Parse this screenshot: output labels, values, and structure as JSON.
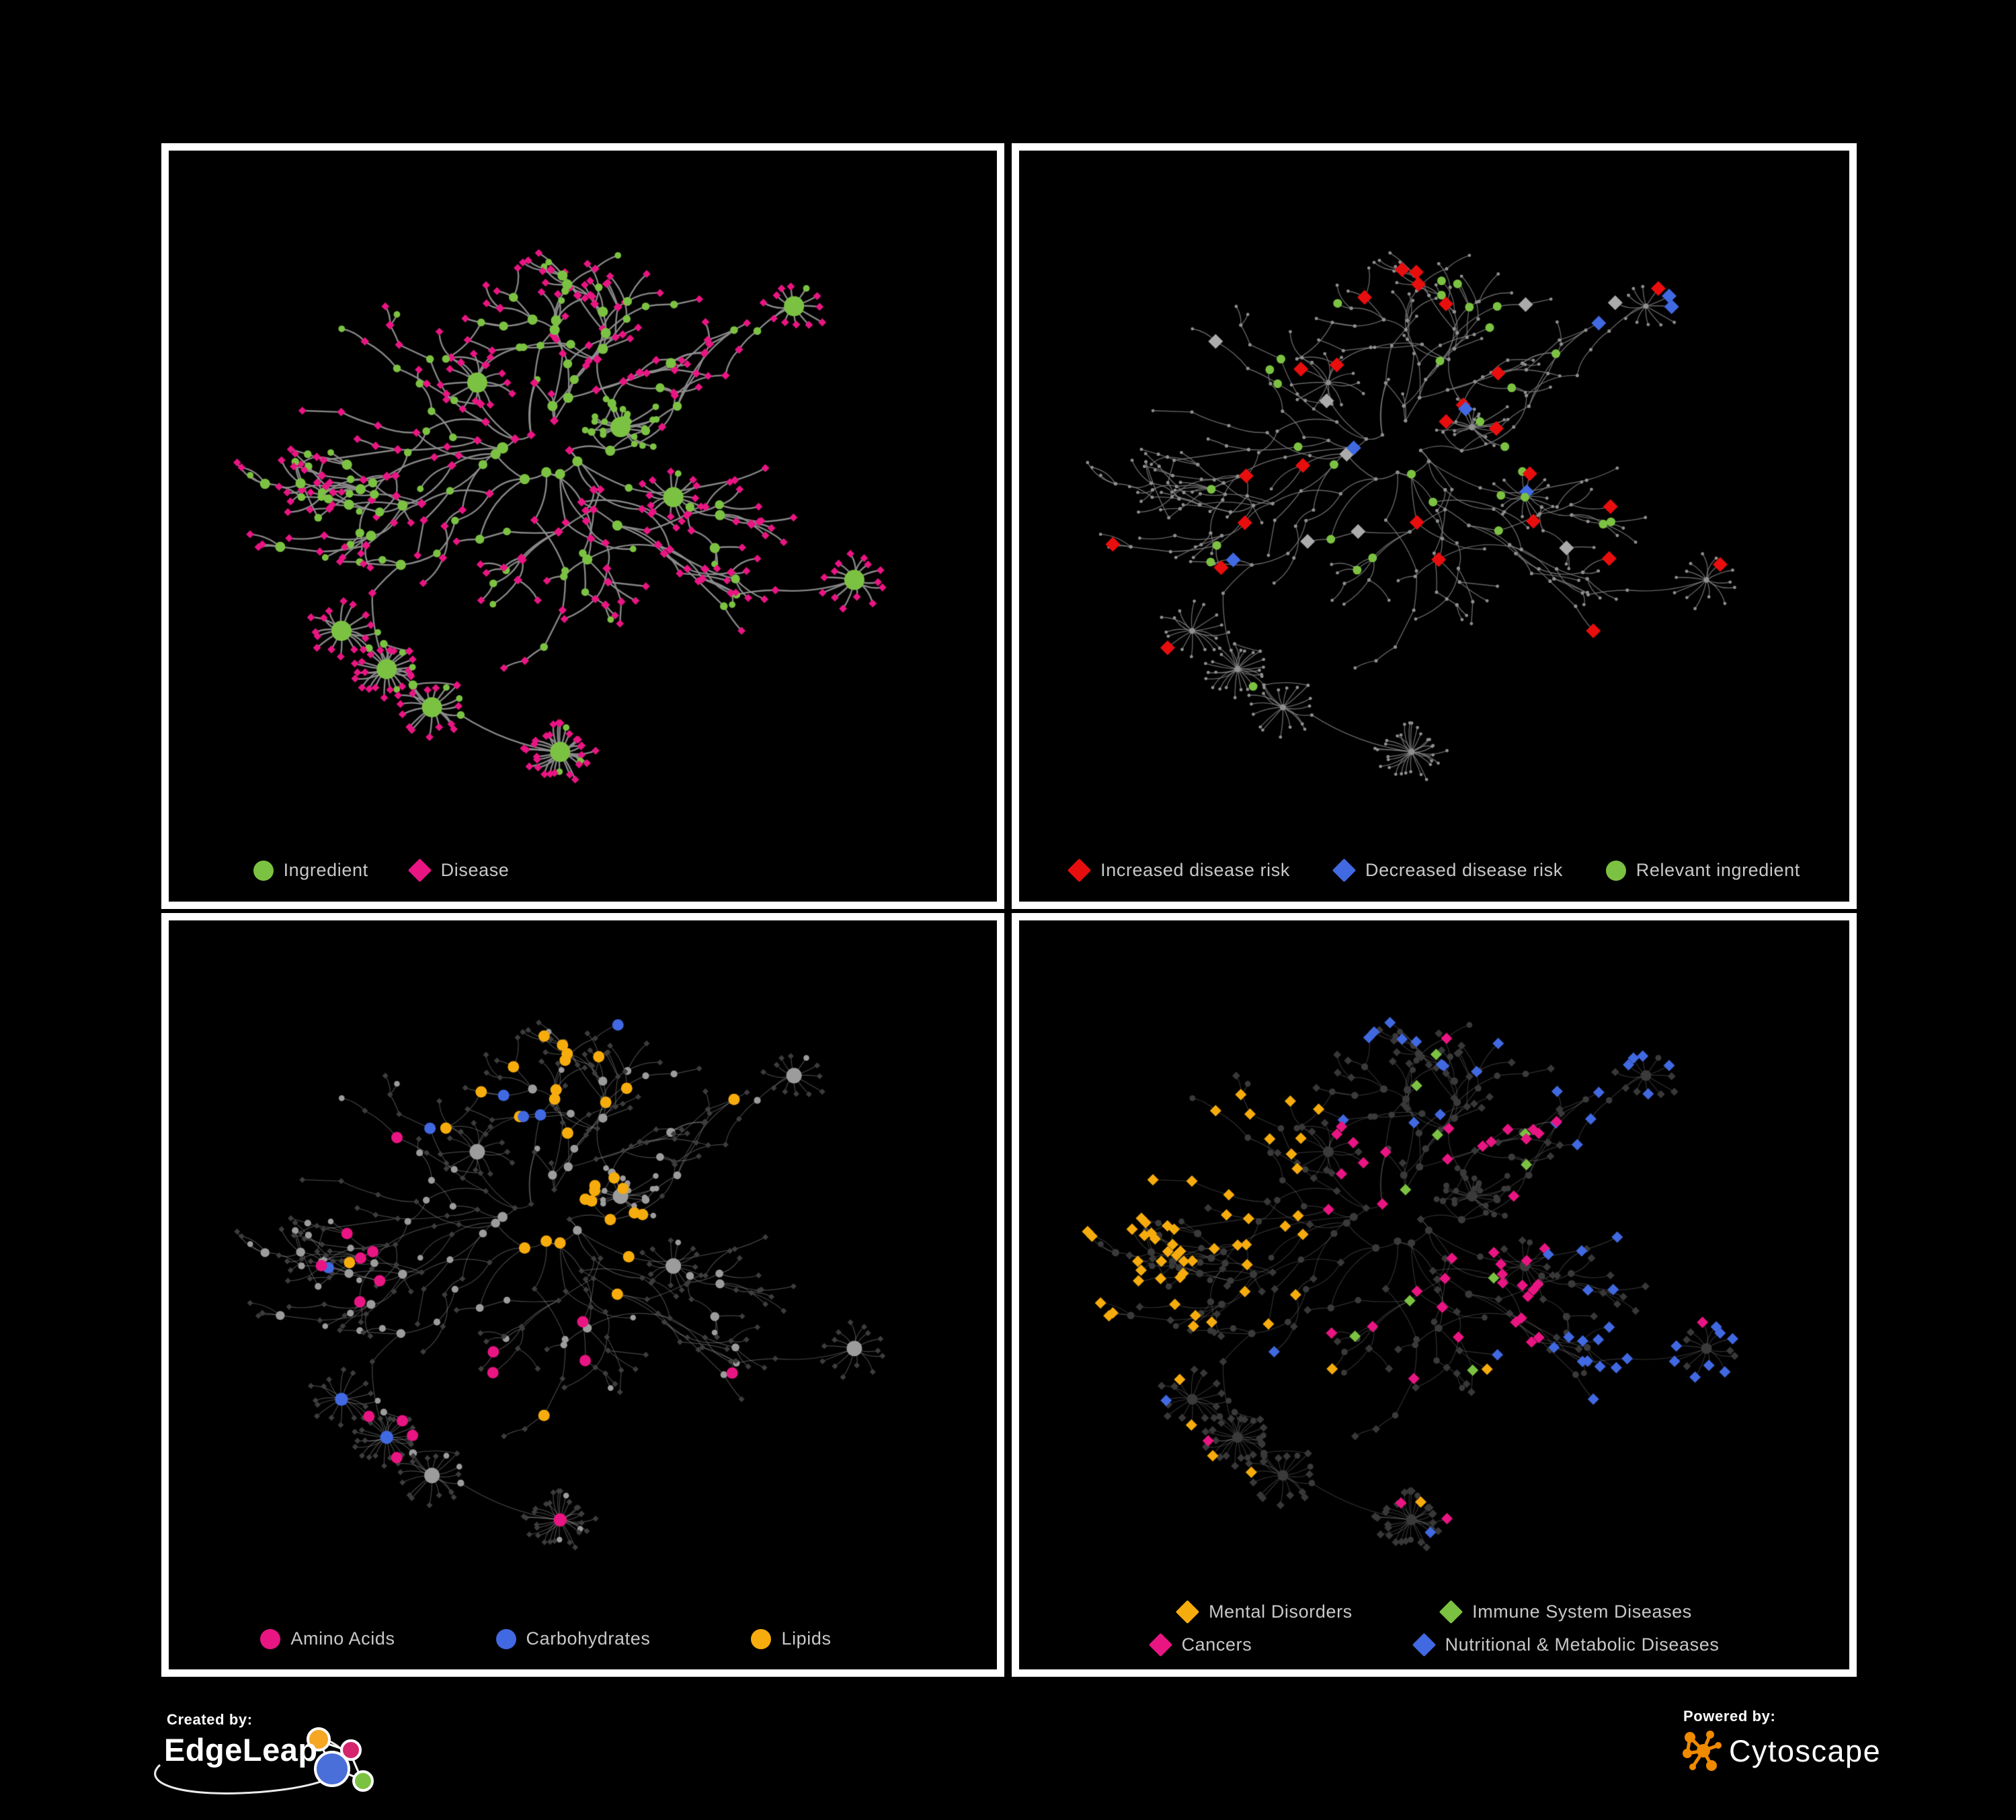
{
  "colors": {
    "background": "#000000",
    "panel_border": "#FFFFFF",
    "legend_text": "#C8C8C8",
    "green": "#7CC242",
    "pink": "#E91583",
    "red": "#E90E0E",
    "blue": "#4169E1",
    "orange": "#F7AC0D",
    "gray_highlight": "#ABABAB",
    "gray_node": "#8F8F8F",
    "gray_circle": "#9C9C9C",
    "dark_node": "#3A3A3A",
    "edgeleap_orange": "#F5A623",
    "edgeleap_pink": "#D6246E",
    "edgeleap_blue": "#4A6FD8",
    "edgeleap_green": "#7CC242",
    "cytoscape_orange": "#F08A00"
  },
  "panels": [
    {
      "id": "ingredient-disease",
      "legend_rows": [
        [
          {
            "shape": "circle",
            "color_key": "green",
            "label": "Ingredient"
          },
          {
            "shape": "diamond",
            "color_key": "pink",
            "label": "Disease"
          }
        ]
      ]
    },
    {
      "id": "disease-risk",
      "legend_rows": [
        [
          {
            "shape": "diamond",
            "color_key": "red",
            "label": "Increased disease risk"
          },
          {
            "shape": "diamond",
            "color_key": "blue",
            "label": "Decreased disease risk"
          },
          {
            "shape": "circle",
            "color_key": "green",
            "label": "Relevant ingredient"
          }
        ]
      ]
    },
    {
      "id": "nutrient-classes",
      "legend_rows": [
        [
          {
            "shape": "circle",
            "color_key": "pink",
            "label": "Amino Acids"
          },
          {
            "shape": "circle",
            "color_key": "blue",
            "label": "Carbohydrates"
          },
          {
            "shape": "circle",
            "color_key": "orange",
            "label": "Lipids"
          }
        ]
      ]
    },
    {
      "id": "disease-categories",
      "legend_rows": [
        [
          {
            "shape": "diamond",
            "color_key": "orange",
            "label": "Mental Disorders"
          },
          {
            "shape": "diamond",
            "color_key": "green",
            "label": "Immune System Diseases"
          }
        ],
        [
          {
            "shape": "diamond",
            "color_key": "pink",
            "label": "Cancers"
          },
          {
            "shape": "diamond",
            "color_key": "blue",
            "label": "Nutritional & Metabolic Diseases"
          }
        ]
      ]
    }
  ],
  "footer": {
    "created_by": "Created by:",
    "edgeleap": "EdgeLeap",
    "powered_by": "Powered by:",
    "cytoscape": "Cytoscape"
  }
}
